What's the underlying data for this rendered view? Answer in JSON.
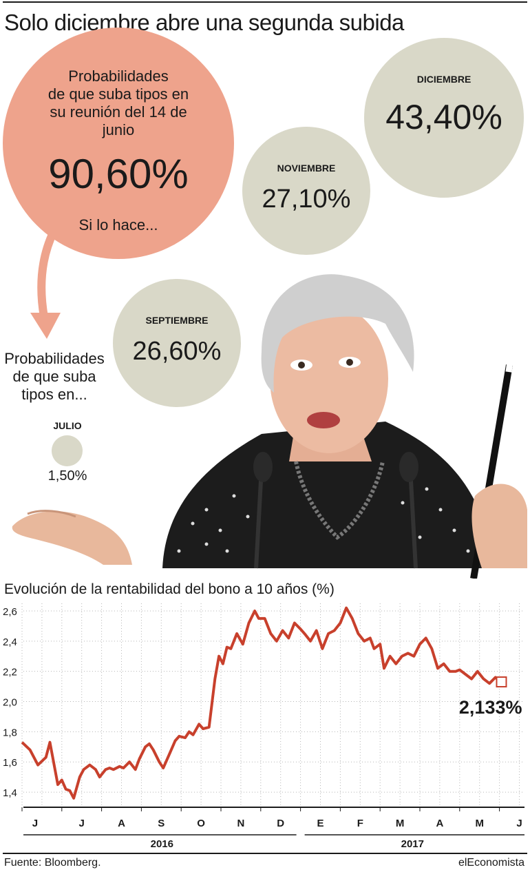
{
  "title": "Solo diciembre abre una segunda subida",
  "june_bubble": {
    "text_lines": [
      "Probabilidades",
      "de que suba tipos en",
      "su reunión del 14 de",
      "junio"
    ],
    "value": "90,60%",
    "subtext": "Si lo hace..."
  },
  "probabilities_label_lines": [
    "Probabilidades",
    "de que suba",
    "tipos en..."
  ],
  "meetings": {
    "julio": {
      "label": "JULIO",
      "value": "1,50%"
    },
    "septiembre": {
      "label": "SEPTIEMBRE",
      "value": "26,60%"
    },
    "noviembre": {
      "label": "NOVIEMBRE",
      "value": "27,10%"
    },
    "diciembre": {
      "label": "DICIEMBRE",
      "value": "43,40%"
    }
  },
  "colors": {
    "salmon": "#eea38c",
    "gray_circle": "#d9d8c8",
    "line_red": "#c8402c",
    "grid": "#b5b5b5"
  },
  "chart_title": "Evolución de la rentabilidad del bono a 10 años (%)",
  "chart_data": {
    "type": "line",
    "title": "Evolución de la rentabilidad del bono a 10 años (%)",
    "ylim": [
      1.3,
      2.65
    ],
    "yticks": [
      "2,6",
      "2,4",
      "2,2",
      "2,0",
      "1,8",
      "1,6",
      "1,4"
    ],
    "ytick_values": [
      2.6,
      2.4,
      2.2,
      2.0,
      1.8,
      1.6,
      1.4
    ],
    "month_labels": [
      "J",
      "J",
      "A",
      "S",
      "O",
      "N",
      "D",
      "E",
      "F",
      "M",
      "A",
      "M",
      "J"
    ],
    "year_labels": [
      "2016",
      "2017"
    ],
    "grid": true,
    "x_unit": "months from start of June 2016",
    "x": [
      0,
      0.2,
      0.4,
      0.6,
      0.7,
      0.9,
      1.0,
      1.1,
      1.2,
      1.3,
      1.45,
      1.55,
      1.7,
      1.85,
      1.95,
      2.1,
      2.2,
      2.3,
      2.45,
      2.55,
      2.7,
      2.85,
      2.95,
      3.1,
      3.2,
      3.3,
      3.45,
      3.55,
      3.7,
      3.85,
      3.95,
      4.1,
      4.2,
      4.3,
      4.45,
      4.55,
      4.7,
      4.85,
      4.95,
      5.05,
      5.15,
      5.25,
      5.4,
      5.55,
      5.7,
      5.85,
      5.95,
      6.1,
      6.25,
      6.4,
      6.55,
      6.7,
      6.85,
      7.0,
      7.1,
      7.25,
      7.4,
      7.55,
      7.7,
      7.85,
      8.0,
      8.15,
      8.3,
      8.45,
      8.6,
      8.75,
      8.85,
      9.0,
      9.1,
      9.25,
      9.4,
      9.55,
      9.7,
      9.85,
      10.0,
      10.15,
      10.3,
      10.45,
      10.6,
      10.75,
      10.9,
      11.0,
      11.15,
      11.3,
      11.45,
      11.6,
      11.75,
      11.9,
      12.05
    ],
    "y": [
      1.73,
      1.68,
      1.58,
      1.63,
      1.73,
      1.45,
      1.48,
      1.42,
      1.41,
      1.36,
      1.5,
      1.55,
      1.58,
      1.55,
      1.5,
      1.55,
      1.56,
      1.55,
      1.57,
      1.56,
      1.6,
      1.55,
      1.62,
      1.7,
      1.72,
      1.68,
      1.6,
      1.56,
      1.65,
      1.74,
      1.77,
      1.76,
      1.8,
      1.78,
      1.85,
      1.82,
      1.83,
      2.15,
      2.3,
      2.25,
      2.36,
      2.35,
      2.45,
      2.38,
      2.52,
      2.6,
      2.55,
      2.55,
      2.45,
      2.4,
      2.47,
      2.42,
      2.52,
      2.48,
      2.45,
      2.4,
      2.47,
      2.35,
      2.45,
      2.47,
      2.52,
      2.62,
      2.55,
      2.45,
      2.4,
      2.42,
      2.35,
      2.38,
      2.22,
      2.3,
      2.25,
      2.3,
      2.32,
      2.3,
      2.38,
      2.42,
      2.35,
      2.22,
      2.25,
      2.2,
      2.2,
      2.21,
      2.18,
      2.15,
      2.2,
      2.15,
      2.12,
      2.16,
      2.13
    ],
    "last_value_label": "2,133%"
  },
  "source": "Fuente: Bloomberg.",
  "brand": "elEconomista"
}
